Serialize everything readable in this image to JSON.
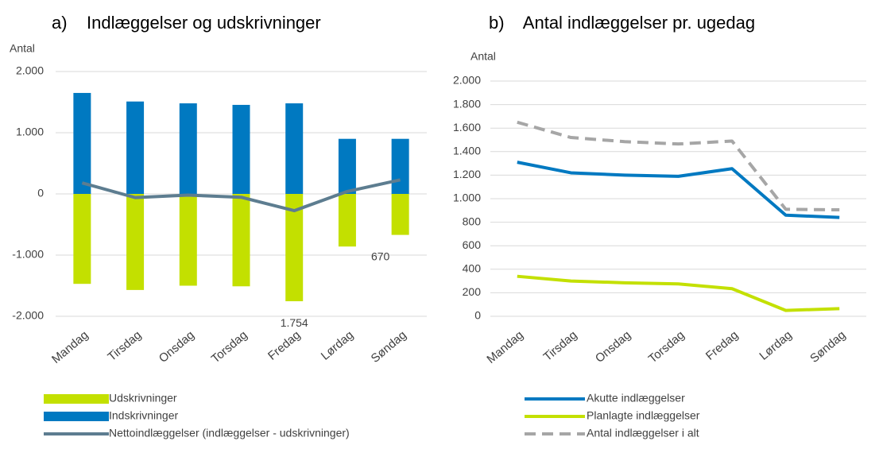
{
  "chart_data": [
    {
      "type": "bar",
      "title": "a)    Indlæggelser og udskrivninger",
      "y_label": "Antal",
      "categories": [
        "Mandag",
        "Tirsdag",
        "Onsdag",
        "Torsdag",
        "Fredag",
        "Lørdag",
        "Søndag"
      ],
      "series": [
        {
          "name": "Udskrivninger",
          "type": "bar",
          "color": "#c3e000",
          "values": [
            -1470,
            -1570,
            -1500,
            -1510,
            -1754,
            -860,
            -670
          ],
          "value_labels": [
            null,
            null,
            null,
            null,
            "1.754",
            null,
            "670"
          ]
        },
        {
          "name": "Indskrivninger",
          "type": "bar",
          "color": "#0079c1",
          "values": [
            1650,
            1510,
            1480,
            1455,
            1480,
            900,
            900
          ]
        },
        {
          "name": "Nettoindlæggelser (indlæggelser - udskrivninger)",
          "type": "line",
          "color": "#5d7d90",
          "values": [
            180,
            -60,
            -20,
            -55,
            -274,
            40,
            230
          ]
        }
      ],
      "ylim": [
        -2000,
        2000
      ],
      "yticks": [
        {
          "value": -2000,
          "label": "-2.000"
        },
        {
          "value": -1000,
          "label": "-1.000"
        },
        0,
        {
          "value": 1000,
          "label": "1.000"
        },
        {
          "value": 2000,
          "label": "2.000"
        }
      ],
      "grid": true
    },
    {
      "type": "line",
      "title": "b)    Antal indlæggelser pr. ugedag",
      "y_label": "Antal",
      "categories": [
        "Mandag",
        "Tirsdag",
        "Onsdag",
        "Torsdag",
        "Fredag",
        "Lørdag",
        "Søndag"
      ],
      "series": [
        {
          "name": "Akutte indlæggelser",
          "color": "#0079c1",
          "values": [
            1310,
            1220,
            1200,
            1190,
            1255,
            860,
            840
          ]
        },
        {
          "name": "Planlagte indlæggelser",
          "color": "#c3e000",
          "values": [
            340,
            300,
            285,
            275,
            235,
            50,
            65
          ]
        },
        {
          "name": "Antal indlæggelser i alt",
          "color": "#a6a6a6",
          "dashed": true,
          "values": [
            1650,
            1520,
            1485,
            1465,
            1490,
            910,
            905
          ]
        }
      ],
      "ylim": [
        0,
        2000
      ],
      "yticks": [
        0,
        200,
        400,
        600,
        800,
        {
          "value": 1000,
          "label": "1.000"
        },
        {
          "value": 1200,
          "label": "1.200"
        },
        {
          "value": 1400,
          "label": "1.400"
        },
        {
          "value": 1600,
          "label": "1.600"
        },
        {
          "value": 1800,
          "label": "1.800"
        },
        {
          "value": 2000,
          "label": "2.000"
        }
      ],
      "grid": true
    }
  ]
}
